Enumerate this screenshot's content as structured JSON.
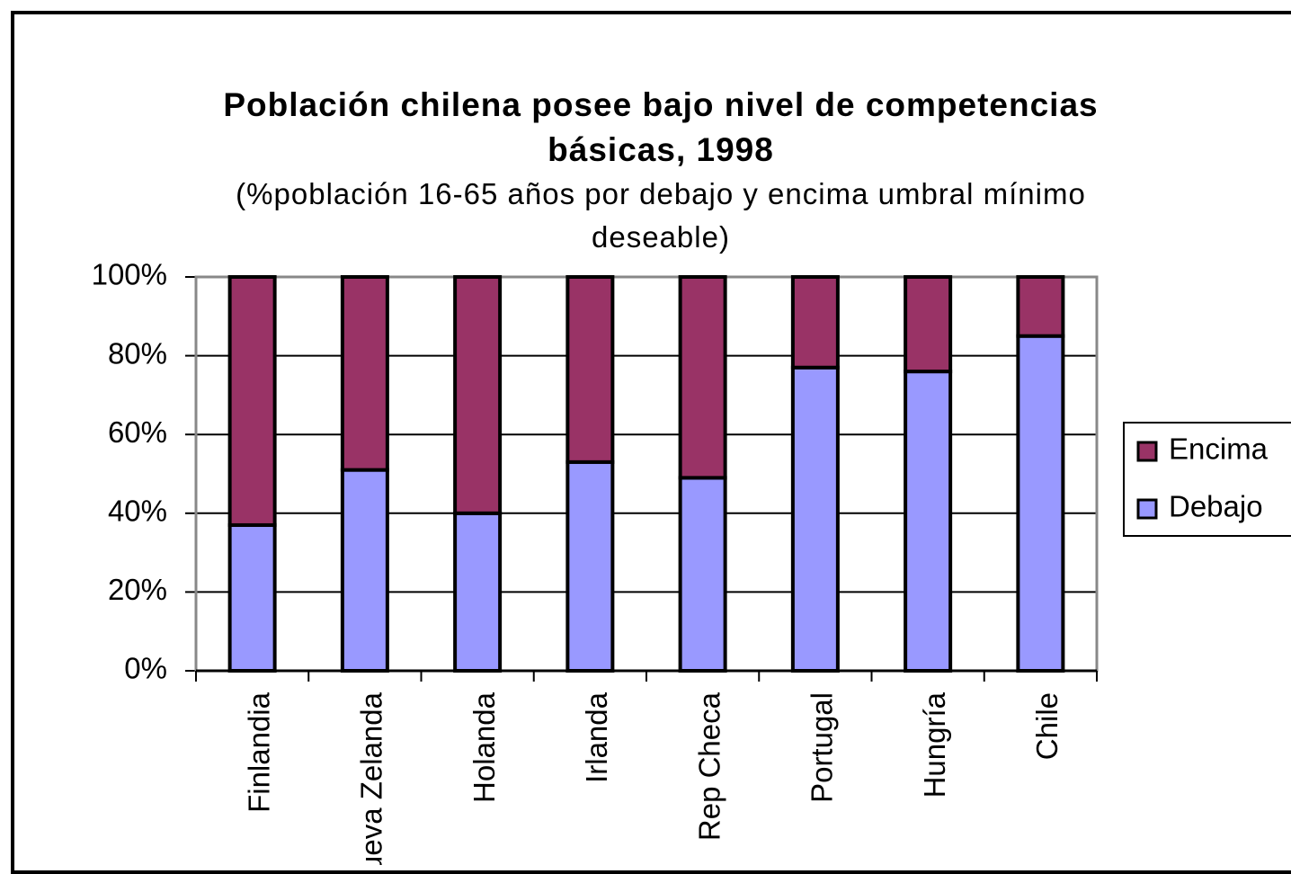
{
  "chart_data": {
    "type": "stacked_bar",
    "title": "Población chilena posee bajo nivel de competencias básicas, 1998",
    "subtitle": "(%población 16-65 años por debajo y encima umbral mínimo deseable)",
    "categories": [
      "Finlandia",
      "Nueva Zelanda",
      "Holanda",
      "Irlanda",
      "Rep Checa",
      "Portugal",
      "Hungría",
      "Chile"
    ],
    "series": [
      {
        "name": "Encima",
        "color": "#993366",
        "values": [
          63,
          49,
          60,
          47,
          51,
          23,
          24,
          15
        ]
      },
      {
        "name": "Debajo",
        "color": "#9999ff",
        "values": [
          37,
          51,
          40,
          53,
          49,
          77,
          76,
          85
        ]
      }
    ],
    "ylim": [
      0,
      100
    ],
    "yticks": [
      {
        "value": 0,
        "label": "0%"
      },
      {
        "value": 20,
        "label": "20%"
      },
      {
        "value": 40,
        "label": "40%"
      },
      {
        "value": 60,
        "label": "60%"
      },
      {
        "value": 80,
        "label": "80%"
      },
      {
        "value": 100,
        "label": "100%"
      }
    ],
    "grid": true,
    "legend": "right"
  }
}
